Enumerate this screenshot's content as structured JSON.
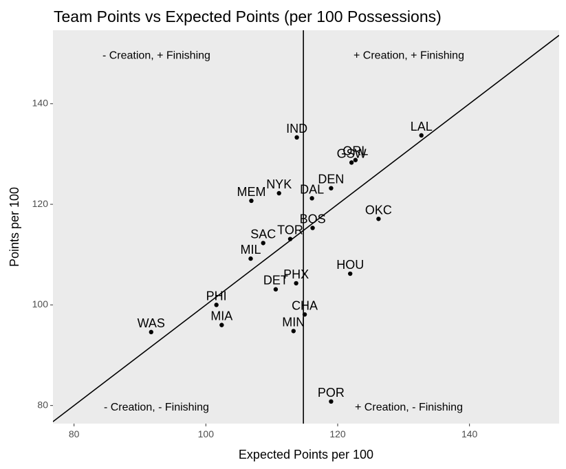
{
  "chart_data": {
    "type": "scatter",
    "title": "Team Points vs Expected Points (per 100 Possessions)",
    "xlabel": "Expected Points per 100",
    "ylabel": "Points per 100",
    "xlim": [
      76.8,
      153.6
    ],
    "ylim": [
      76.4,
      154.6
    ],
    "x_ticks": [
      80,
      100,
      120,
      140
    ],
    "y_ticks": [
      80,
      100,
      120,
      140
    ],
    "grid": false,
    "panel_color": "#ebebeb",
    "point_color": "#000000",
    "vertical_line_x": 114.8,
    "diagonal_line": {
      "slope": 1,
      "intercept": 0
    },
    "quadrant_labels": [
      {
        "text": "- Creation, + Finishing",
        "x": 92.5,
        "y": 149.5
      },
      {
        "text": "+ Creation, + Finishing",
        "x": 130.8,
        "y": 149.5
      },
      {
        "text": "- Creation, - Finishing",
        "x": 92.5,
        "y": 79.6
      },
      {
        "text": "+ Creation, - Finishing",
        "x": 130.8,
        "y": 79.6
      }
    ],
    "points": [
      {
        "label": "IND",
        "x": 113.8,
        "y": 133.3
      },
      {
        "label": "LAL",
        "x": 132.7,
        "y": 133.7
      },
      {
        "label": "ORL",
        "x": 122.7,
        "y": 128.8
      },
      {
        "label": "GSW",
        "x": 122.1,
        "y": 128.3
      },
      {
        "label": "DEN",
        "x": 119.0,
        "y": 123.2
      },
      {
        "label": "NYK",
        "x": 111.1,
        "y": 122.2
      },
      {
        "label": "DAL",
        "x": 116.1,
        "y": 121.2
      },
      {
        "label": "MEM",
        "x": 106.9,
        "y": 120.7
      },
      {
        "label": "OKC",
        "x": 126.2,
        "y": 117.1
      },
      {
        "label": "BOS",
        "x": 116.2,
        "y": 115.3
      },
      {
        "label": "TOR",
        "x": 112.8,
        "y": 113.1
      },
      {
        "label": "SAC",
        "x": 108.7,
        "y": 112.3
      },
      {
        "label": "MIL",
        "x": 106.8,
        "y": 109.2
      },
      {
        "label": "HOU",
        "x": 121.9,
        "y": 106.2
      },
      {
        "label": "PHX",
        "x": 113.7,
        "y": 104.3
      },
      {
        "label": "DET",
        "x": 110.6,
        "y": 103.1
      },
      {
        "label": "PHI",
        "x": 101.6,
        "y": 100.0
      },
      {
        "label": "CHA",
        "x": 115.0,
        "y": 98.1
      },
      {
        "label": "MIA",
        "x": 102.4,
        "y": 96.0
      },
      {
        "label": "MIN",
        "x": 113.3,
        "y": 94.8
      },
      {
        "label": "WAS",
        "x": 91.7,
        "y": 94.6
      },
      {
        "label": "POR",
        "x": 119.0,
        "y": 80.8
      }
    ]
  }
}
